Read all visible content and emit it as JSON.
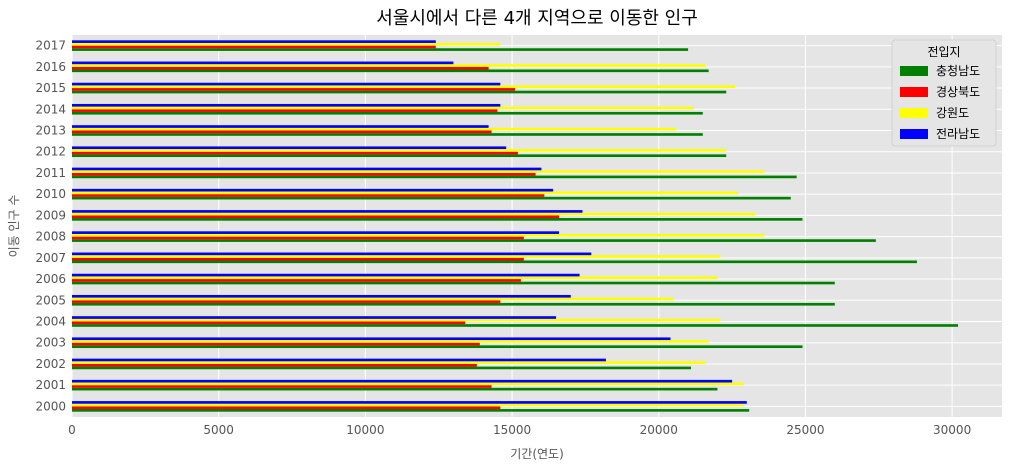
{
  "chart_data": {
    "type": "bar",
    "orientation": "horizontal",
    "title": "서울시에서 다른 4개 지역으로 이동한 인구",
    "xlabel": "기간(연도)",
    "ylabel": "이동 인구 수",
    "xlim": [
      0,
      31700
    ],
    "xticks": [
      0,
      5000,
      10000,
      15000,
      20000,
      25000,
      30000
    ],
    "grid": true,
    "legend": {
      "title": "전입지",
      "position": "top-right"
    },
    "categories": [
      "2000",
      "2001",
      "2002",
      "2003",
      "2004",
      "2005",
      "2006",
      "2007",
      "2008",
      "2009",
      "2010",
      "2011",
      "2012",
      "2013",
      "2014",
      "2015",
      "2016",
      "2017"
    ],
    "series": [
      {
        "name": "충청남도",
        "color": "#008000",
        "values": [
          23083,
          22000,
          21100,
          24900,
          30200,
          26000,
          26000,
          28800,
          27400,
          24900,
          24500,
          24700,
          22300,
          21500,
          21500,
          22300,
          21700,
          21000
        ]
      },
      {
        "name": "경상북도",
        "color": "#ff0000",
        "values": [
          14600,
          14300,
          13800,
          13900,
          13400,
          14600,
          15300,
          15400,
          15400,
          16600,
          16100,
          15800,
          15200,
          14300,
          14500,
          15100,
          14200,
          12400
        ]
      },
      {
        "name": "강원도",
        "color": "#ffff00",
        "values": [
          22900,
          22900,
          21600,
          21700,
          22100,
          20500,
          22000,
          22100,
          23600,
          23300,
          22700,
          23600,
          22300,
          20600,
          21200,
          22600,
          21600,
          14600
        ]
      },
      {
        "name": "전라남도",
        "color": "#0000ff",
        "values": [
          23000,
          22500,
          18200,
          20400,
          16500,
          17000,
          17300,
          17700,
          16600,
          17400,
          16400,
          16000,
          14800,
          14200,
          14600,
          14600,
          13000,
          12400
        ]
      }
    ]
  }
}
